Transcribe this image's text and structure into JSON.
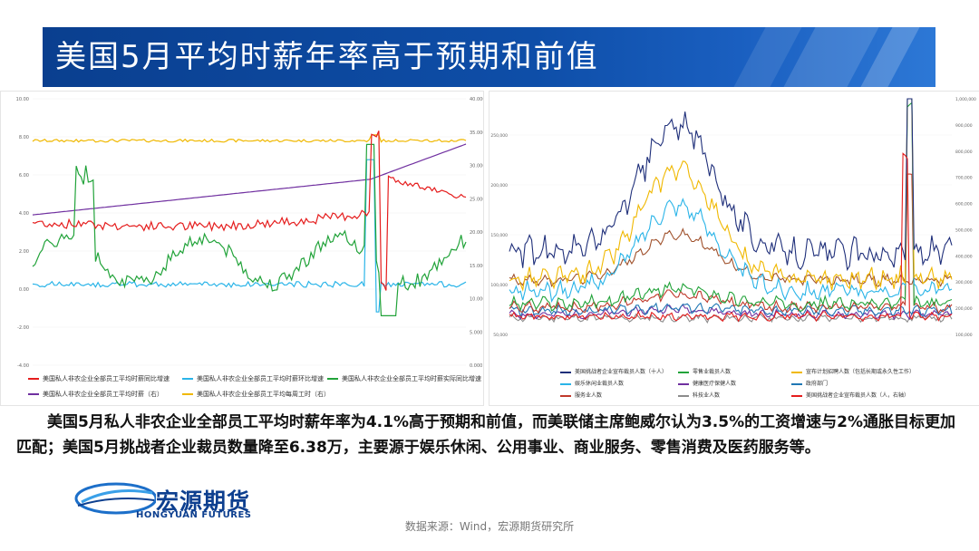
{
  "title": "美国5月平均时薪年率高于预期和前值",
  "colors": {
    "red": "#e51d1d",
    "cyan": "#2ab4e8",
    "green": "#22a33a",
    "purple": "#7030a0",
    "gold": "#f0b800",
    "navy": "#1f2f7a",
    "orange": "#f5a623",
    "brown": "#a0522d",
    "darkred": "#c0392b",
    "gray": "#8c8c8c",
    "blue": "#1f77b4"
  },
  "left_chart": {
    "yleft_ticks": [
      "10.00",
      "8.00",
      "6.00",
      "4.00",
      "2.00",
      "0.00",
      "-2.00",
      "-4.00"
    ],
    "yright_ticks": [
      "40.000",
      "35.000",
      "30.000",
      "25.000",
      "20.000",
      "15.000",
      "10.000",
      "5.000",
      "0.000"
    ],
    "legend": [
      {
        "name": "美国私人非农企业全部员工平均时薪同比增速",
        "color": "#e51d1d"
      },
      {
        "name": "美国私人非农企业全部员工平均时薪环比增速",
        "color": "#2ab4e8"
      },
      {
        "name": "美国私人非农企业全部员工平均时薪实际同比增速",
        "color": "#22a33a"
      },
      {
        "name": "美国私人非农企业全部员工平均时薪（右）",
        "color": "#7030a0"
      },
      {
        "name": "美国私人非农企业全部员工平均每周工时（右）",
        "color": "#f0b800"
      }
    ]
  },
  "right_chart": {
    "yleft_ticks": [
      "250,000",
      "200,000",
      "150,000",
      "100,000",
      "50,000"
    ],
    "yright_ticks": [
      "1,000,000",
      "900,000",
      "800,000",
      "700,000",
      "600,000",
      "500,000",
      "400,000",
      "300,000",
      "200,000",
      "100,000"
    ],
    "legend": [
      {
        "name": "美国挑战者企业宣布裁员人数（十人）",
        "color": "#1f2f7a"
      },
      {
        "name": "零售业裁员人数",
        "color": "#22a33a"
      },
      {
        "name": "宣布计划招聘人数（包括长期或永久性工作）",
        "color": "#f0b800"
      },
      {
        "name": "娱乐休闲业裁员人数",
        "color": "#2ab4e8"
      },
      {
        "name": "健康医疗保健人数",
        "color": "#7030a0"
      },
      {
        "name": "政府部门",
        "color": "#1f77b4"
      },
      {
        "name": "服务业人数",
        "color": "#c0392b"
      },
      {
        "name": "科技业人数",
        "color": "#8c8c8c"
      },
      {
        "name": "美国挑战者企业宣布裁员人数（人，右轴）",
        "color": "#e51d1d"
      }
    ]
  },
  "body_text": "美国5月私人非农企业全部员工平均时薪年率为4.1%高于预期和前值，而美联储主席鲍威尔认为3.5%的工资增速与2%通胀目标更加匹配；美国5月挑战者企业裁员数量降至6.38万，主要源于娱乐休闲、公用事业、商业服务、零售消费及医药服务等。",
  "logo": {
    "cn": "宏源期货",
    "en": "HONGYUAN FUTURES"
  },
  "source": "数据来源：Wind，宏源期货研究所"
}
